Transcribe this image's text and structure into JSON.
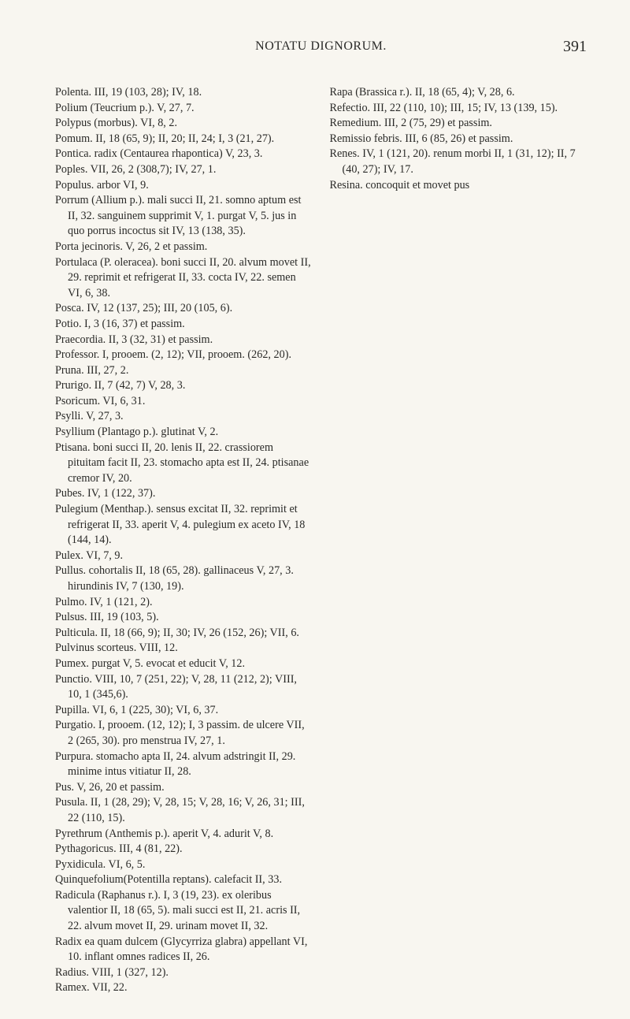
{
  "header": {
    "running_head": "NOTATU DIGNORUM.",
    "page_number": "391"
  },
  "entries": [
    "Polenta. III, 19 (103, 28); IV, 18.",
    "Polium (Teucrium p.). V, 27, 7.",
    "Polypus (morbus). VI, 8, 2.",
    "Pomum. II, 18 (65, 9); II, 20; II, 24; I, 3 (21, 27).",
    "Pontica. radix (Centaurea rhapontica) V, 23, 3.",
    "Poples. VII, 26, 2 (308,7); IV, 27, 1.",
    "Populus. arbor VI, 9.",
    "Porrum (Allium p.). mali succi II, 21. somno aptum est II, 32. sanguinem supprimit V, 1. purgat V, 5. jus in quo porrus incoctus sit IV, 13 (138, 35).",
    "Porta jecinoris. V, 26, 2 et passim.",
    "Portulaca (P. oleracea). boni succi II, 20. alvum movet II, 29. reprimit et refrigerat II, 33. cocta IV, 22. semen VI, 6, 38.",
    "Posca. IV, 12 (137, 25); III, 20 (105, 6).",
    "Potio. I, 3 (16, 37) et passim.",
    "Praecordia. II, 3 (32, 31) et passim.",
    "Professor. I, prooem. (2, 12); VII, prooem. (262, 20).",
    "Pruna. III, 27, 2.",
    "Prurigo. II, 7 (42, 7) V, 28, 3.",
    "Psoricum. VI, 6, 31.",
    "Psylli. V, 27, 3.",
    "Psyllium (Plantago p.). glutinat V, 2.",
    "Ptisana. boni succi II, 20. lenis II, 22. crassiorem pituitam facit II, 23. stomacho apta est II, 24. ptisanae cremor IV, 20.",
    "Pubes. IV, 1 (122, 37).",
    "Pulegium (Menthap.). sensus excitat II, 32. reprimit et refrigerat II, 33. aperit V, 4. pulegium ex aceto IV, 18 (144, 14).",
    "Pulex. VI, 7, 9.",
    "Pullus. cohortalis II, 18 (65, 28). gallinaceus V, 27, 3. hirundinis IV, 7 (130, 19).",
    "Pulmo. IV, 1 (121, 2).",
    "Pulsus. III, 19 (103, 5).",
    "Pulticula. II, 18 (66, 9); II, 30; IV, 26 (152, 26); VII, 6.",
    "Pulvinus scorteus. VIII, 12.",
    "Pumex. purgat V, 5. evocat et educit V, 12.",
    "Punctio. VIII, 10, 7 (251, 22); V, 28, 11 (212, 2); VIII, 10, 1 (345,6).",
    "Pupilla. VI, 6, 1 (225, 30); VI, 6, 37.",
    "Purgatio. I, prooem. (12, 12); I, 3 passim. de ulcere VII, 2 (265, 30). pro menstrua IV, 27, 1.",
    "Purpura. stomacho apta II, 24. alvum adstringit II, 29. minime intus vitiatur II, 28.",
    "Pus. V, 26, 20 et passim.",
    "Pusula. II, 1 (28, 29); V, 28, 15; V, 28, 16; V, 26, 31; III, 22 (110, 15).",
    "Pyrethrum (Anthemis p.). aperit V, 4. adurit V, 8.",
    "Pythagoricus. III, 4 (81, 22).",
    "Pyxidicula. VI, 6, 5.",
    "Quinquefolium(Potentilla reptans). calefacit II, 33.",
    "Radicula (Raphanus r.). I, 3 (19, 23). ex oleribus valentior II, 18 (65, 5). mali succi est II, 21. acris II, 22. alvum movet II, 29. urinam movet II, 32.",
    "Radix ea quam dulcem (Glycyrriza glabra) appellant VI, 10. inflant omnes radices II, 26.",
    "Radius. VIII, 1 (327, 12).",
    "Ramex. VII, 22.",
    "Rapa (Brassica r.). II, 18 (65, 4); V, 28, 6.",
    "Refectio. III, 22 (110, 10); III, 15; IV, 13 (139, 15).",
    "Remedium. III, 2 (75, 29) et passim.",
    "Remissio febris. III, 6 (85, 26) et passim.",
    "Renes. IV, 1 (121, 20). renum morbi II, 1 (31, 12); II, 7 (40, 27); IV, 17.",
    "Resina. concoquit et movet pus"
  ]
}
